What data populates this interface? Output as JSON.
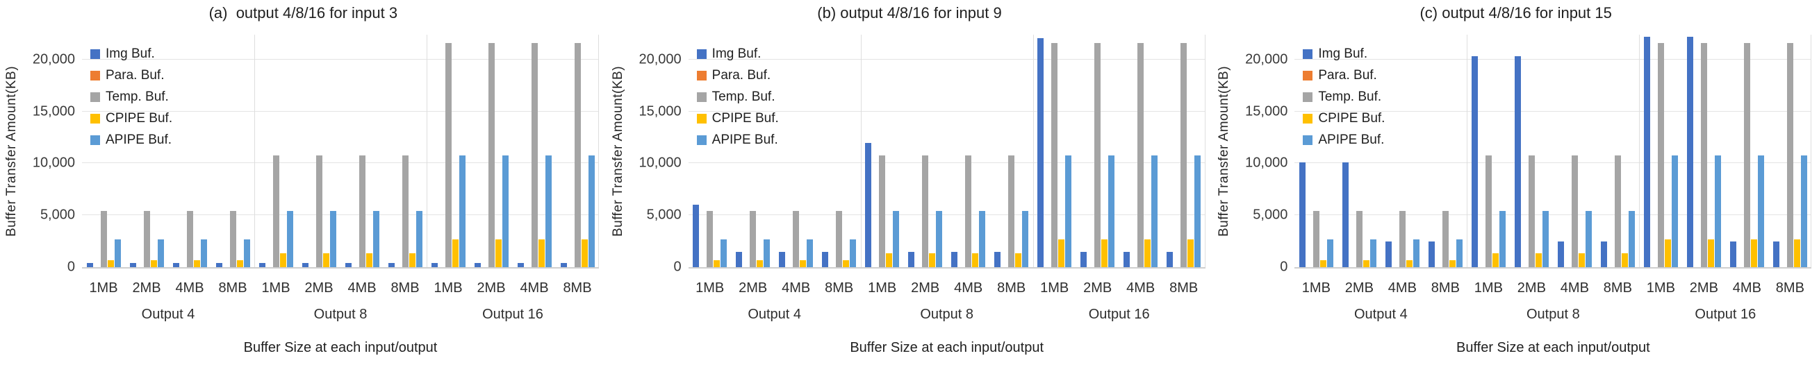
{
  "figure": {
    "y_axis_label": "Buffer Transfer Amount(KB)",
    "x_axis_label": "Buffer Size at each input/output",
    "y_ticks": [
      "0",
      "5,000",
      "10,000",
      "15,000",
      "20,000"
    ],
    "y_tick_values": [
      0,
      5000,
      10000,
      15000,
      20000
    ],
    "grid_color": "#e4e4e4",
    "separator_color": "#dedede",
    "text_color": "#3a3a3a"
  },
  "legend": [
    {
      "label": "Img Buf.",
      "color": "#4472C4"
    },
    {
      "label": "Para. Buf.",
      "color": "#ED7D31"
    },
    {
      "label": "Temp. Buf.",
      "color": "#A5A5A5"
    },
    {
      "label": "CPIPE Buf.",
      "color": "#FFC000"
    },
    {
      "label": "APIPE Buf.",
      "color": "#5B9BD5"
    }
  ],
  "chart_data": [
    {
      "type": "bar",
      "title": "(a)  output 4/8/16 for input 3",
      "xlabel": "Buffer Size at each input/output",
      "ylabel": "Buffer Transfer Amount(KB)",
      "ylim": [
        0,
        22400
      ],
      "grid": true,
      "legend_position": "top-left-inside",
      "group_labels": [
        "Output 4",
        "Output 8",
        "Output 16"
      ],
      "categories": [
        "1MB",
        "2MB",
        "4MB",
        "8MB",
        "1MB",
        "2MB",
        "4MB",
        "8MB",
        "1MB",
        "2MB",
        "4MB",
        "8MB"
      ],
      "series": [
        {
          "name": "Img Buf.",
          "color": "#4472C4",
          "values": [
            400,
            400,
            400,
            400,
            400,
            400,
            400,
            400,
            400,
            400,
            400,
            400
          ]
        },
        {
          "name": "Para. Buf.",
          "color": "#ED7D31",
          "values": [
            0,
            0,
            0,
            0,
            0,
            0,
            0,
            0,
            0,
            0,
            0,
            0
          ]
        },
        {
          "name": "Temp. Buf.",
          "color": "#A5A5A5",
          "values": [
            5400,
            5400,
            5400,
            5400,
            10800,
            10800,
            10800,
            10800,
            21600,
            21600,
            21600,
            21600
          ]
        },
        {
          "name": "CPIPE Buf.",
          "color": "#FFC000",
          "values": [
            675,
            675,
            675,
            675,
            1350,
            1350,
            1350,
            1350,
            2700,
            2700,
            2700,
            2700
          ]
        },
        {
          "name": "APIPE Buf.",
          "color": "#5B9BD5",
          "values": [
            2700,
            2700,
            2700,
            2700,
            5400,
            5400,
            5400,
            5400,
            10800,
            10800,
            10800,
            10800
          ]
        }
      ]
    },
    {
      "type": "bar",
      "title": "(b) output 4/8/16 for input 9",
      "xlabel": "Buffer Size at each input/output",
      "ylabel": "Buffer Transfer Amount(KB)",
      "ylim": [
        0,
        22400
      ],
      "grid": true,
      "legend_position": "top-left-inside",
      "group_labels": [
        "Output 4",
        "Output 8",
        "Output 16"
      ],
      "categories": [
        "1MB",
        "2MB",
        "4MB",
        "8MB",
        "1MB",
        "2MB",
        "4MB",
        "8MB",
        "1MB",
        "2MB",
        "4MB",
        "8MB"
      ],
      "series": [
        {
          "name": "Img Buf.",
          "color": "#4472C4",
          "values": [
            6050,
            1500,
            1500,
            1500,
            12000,
            1500,
            1500,
            1500,
            22100,
            1500,
            1500,
            1500
          ]
        },
        {
          "name": "Para. Buf.",
          "color": "#ED7D31",
          "values": [
            0,
            0,
            0,
            0,
            0,
            0,
            0,
            0,
            0,
            0,
            0,
            0
          ]
        },
        {
          "name": "Temp. Buf.",
          "color": "#A5A5A5",
          "values": [
            5400,
            5400,
            5400,
            5400,
            10800,
            10800,
            10800,
            10800,
            21600,
            21600,
            21600,
            21600
          ]
        },
        {
          "name": "CPIPE Buf.",
          "color": "#FFC000",
          "values": [
            675,
            675,
            675,
            675,
            1350,
            1350,
            1350,
            1350,
            2700,
            2700,
            2700,
            2700
          ]
        },
        {
          "name": "APIPE Buf.",
          "color": "#5B9BD5",
          "values": [
            2700,
            2700,
            2700,
            2700,
            5400,
            5400,
            5400,
            5400,
            10800,
            10800,
            10800,
            10800
          ]
        }
      ]
    },
    {
      "type": "bar",
      "title": "(c) output 4/8/16 for input 15",
      "xlabel": "Buffer Size at each input/output",
      "ylabel": "Buffer Transfer Amount(KB)",
      "ylim": [
        0,
        22400
      ],
      "grid": true,
      "legend_position": "top-left-inside",
      "group_labels": [
        "Output 4",
        "Output 8",
        "Output 16"
      ],
      "categories": [
        "1MB",
        "2MB",
        "4MB",
        "8MB",
        "1MB",
        "2MB",
        "4MB",
        "8MB",
        "1MB",
        "2MB",
        "4MB",
        "8MB"
      ],
      "series": [
        {
          "name": "Img Buf.",
          "color": "#4472C4",
          "values": [
            10100,
            10100,
            2500,
            2500,
            20300,
            20300,
            2500,
            2500,
            22200,
            22200,
            2500,
            2500
          ]
        },
        {
          "name": "Para. Buf.",
          "color": "#ED7D31",
          "values": [
            0,
            0,
            0,
            0,
            0,
            0,
            0,
            0,
            0,
            0,
            0,
            0
          ]
        },
        {
          "name": "Temp. Buf.",
          "color": "#A5A5A5",
          "values": [
            5400,
            5400,
            5400,
            5400,
            10800,
            10800,
            10800,
            10800,
            21600,
            21600,
            21600,
            21600
          ]
        },
        {
          "name": "CPIPE Buf.",
          "color": "#FFC000",
          "values": [
            675,
            675,
            675,
            675,
            1350,
            1350,
            1350,
            1350,
            2700,
            2700,
            2700,
            2700
          ]
        },
        {
          "name": "APIPE Buf.",
          "color": "#5B9BD5",
          "values": [
            2700,
            2700,
            2700,
            2700,
            5400,
            5400,
            5400,
            5400,
            10800,
            10800,
            10800,
            10800
          ]
        }
      ]
    }
  ]
}
